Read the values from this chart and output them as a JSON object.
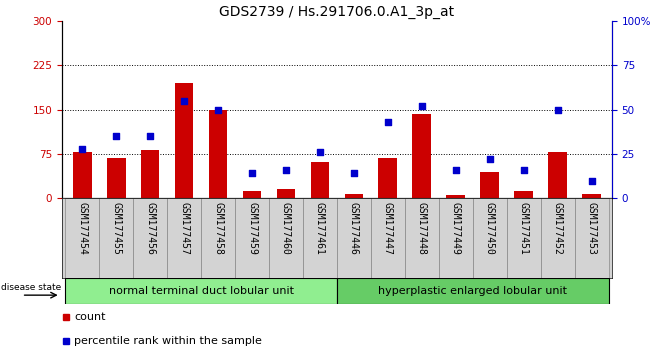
{
  "title": "GDS2739 / Hs.291706.0.A1_3p_at",
  "categories": [
    "GSM177454",
    "GSM177455",
    "GSM177456",
    "GSM177457",
    "GSM177458",
    "GSM177459",
    "GSM177460",
    "GSM177461",
    "GSM177446",
    "GSM177447",
    "GSM177448",
    "GSM177449",
    "GSM177450",
    "GSM177451",
    "GSM177452",
    "GSM177453"
  ],
  "counts": [
    78,
    68,
    82,
    195,
    150,
    12,
    15,
    62,
    8,
    68,
    142,
    5,
    45,
    12,
    78,
    8
  ],
  "percentiles": [
    28,
    35,
    35,
    55,
    50,
    14,
    16,
    26,
    14,
    43,
    52,
    16,
    22,
    16,
    50,
    10
  ],
  "left_ylim": [
    0,
    300
  ],
  "right_ylim": [
    0,
    100
  ],
  "left_yticks": [
    0,
    75,
    150,
    225,
    300
  ],
  "right_yticks": [
    0,
    25,
    50,
    75,
    100
  ],
  "right_yticklabels": [
    "0",
    "25",
    "50",
    "75",
    "100%"
  ],
  "bar_color": "#cc0000",
  "dot_color": "#0000cc",
  "bg_color": "#ffffff",
  "group1_label": "normal terminal duct lobular unit",
  "group2_label": "hyperplastic enlarged lobular unit",
  "group1_indices": [
    0,
    1,
    2,
    3,
    4,
    5,
    6,
    7
  ],
  "group2_indices": [
    8,
    9,
    10,
    11,
    12,
    13,
    14,
    15
  ],
  "group1_color": "#90ee90",
  "group2_color": "#66cc66",
  "disease_state_label": "disease state",
  "legend_count_label": "count",
  "legend_pct_label": "percentile rank within the sample",
  "title_fontsize": 10,
  "axis_fontsize": 7.5,
  "tick_fontsize": 7,
  "label_fontsize": 8
}
